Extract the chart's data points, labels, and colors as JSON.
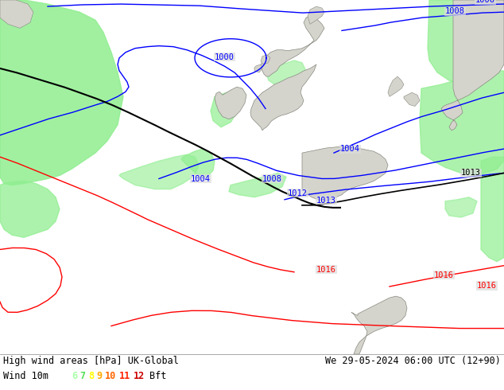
{
  "title_left": "High wind areas [hPa] UK-Global",
  "title_right": "We 29-05-2024 06:00 UTC (12+90)",
  "legend_label": "Wind 10m",
  "legend_items": [
    {
      "value": "6",
      "color": "#aaffaa"
    },
    {
      "value": "7",
      "color": "#55dd55"
    },
    {
      "value": "8",
      "color": "#ffff00"
    },
    {
      "value": "9",
      "color": "#ffaa00"
    },
    {
      "value": "10",
      "color": "#ff6600"
    },
    {
      "value": "11",
      "color": "#ff2200"
    },
    {
      "value": "12",
      "color": "#cc0000"
    }
  ],
  "legend_suffix": "Bft",
  "bg_color": "#e0e0e0",
  "land_color_fill": "#d4d4cc",
  "land_color_edge": "#888880",
  "green_color": "#90ee90",
  "sea_color": "#e8e8e8",
  "figsize": [
    6.34,
    4.9
  ],
  "dpi": 100,
  "font_color": "#000000",
  "font_size": 9,
  "font_family": "monospace",
  "blue": "#0000ff",
  "black": "#000000",
  "red": "#ff0000",
  "map_bg": "#dcdcdc"
}
